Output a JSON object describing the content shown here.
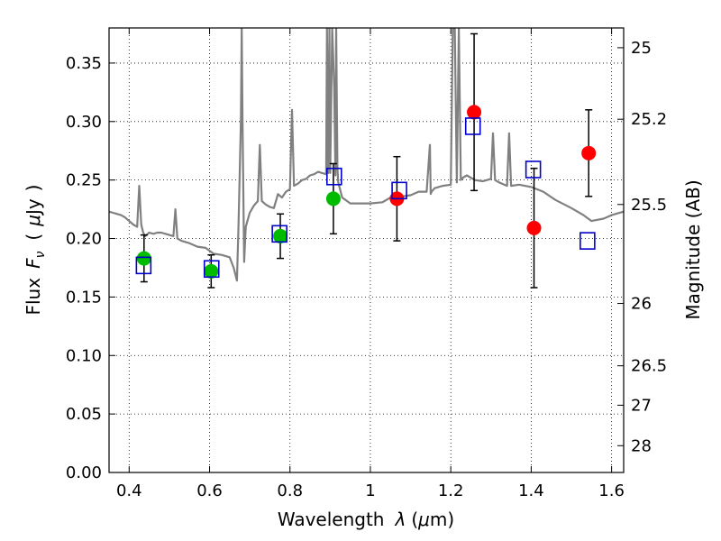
{
  "chart_data": {
    "type": "scatter",
    "xlabel_parts": {
      "a": "Wavelength",
      "b": "λ",
      "c": "(",
      "d": "μ",
      "e": "m)"
    },
    "ylabel_parts": {
      "a": "Flux",
      "b": "F",
      "c": "ν",
      "d": "(",
      "e": "μ",
      "f": "Jy",
      "g": ")"
    },
    "ylabel_right": "Magnitude (AB)",
    "xlim": [
      0.35,
      1.63
    ],
    "ylim": [
      0.0,
      0.38
    ],
    "x_ticks": [
      0.4,
      0.6,
      0.8,
      1.0,
      1.2,
      1.4,
      1.6
    ],
    "x_tick_labels": [
      "0.4",
      "0.6",
      "0.8",
      "1",
      "1.2",
      "1.4",
      "1.6"
    ],
    "y_ticks": [
      0.0,
      0.05,
      0.1,
      0.15,
      0.2,
      0.25,
      0.3,
      0.35
    ],
    "y_tick_labels": [
      "0.00",
      "0.05",
      "0.10",
      "0.15",
      "0.20",
      "0.25",
      "0.30",
      "0.35"
    ],
    "right_ticks": [
      {
        "label": "25",
        "flux": 0.3631
      },
      {
        "label": "25.2",
        "flux": 0.302
      },
      {
        "label": "25.5",
        "flux": 0.2291
      },
      {
        "label": "26",
        "flux": 0.1445
      },
      {
        "label": "26.5",
        "flux": 0.0912
      },
      {
        "label": "27",
        "flux": 0.0575
      },
      {
        "label": "28",
        "flux": 0.0229
      }
    ],
    "grid": true,
    "colors": {
      "model": "#808080",
      "green": "#00bb00",
      "red": "#ff0000",
      "blue": "#0000cc",
      "error": "#000000"
    },
    "model_spectrum": {
      "x": [
        0.35,
        0.36,
        0.37,
        0.38,
        0.39,
        0.4,
        0.41,
        0.42,
        0.425,
        0.43,
        0.435,
        0.44,
        0.45,
        0.46,
        0.47,
        0.48,
        0.49,
        0.5,
        0.51,
        0.515,
        0.52,
        0.53,
        0.55,
        0.57,
        0.59,
        0.61,
        0.63,
        0.65,
        0.66,
        0.668,
        0.672,
        0.678,
        0.68,
        0.682,
        0.686,
        0.69,
        0.7,
        0.71,
        0.72,
        0.725,
        0.73,
        0.74,
        0.75,
        0.76,
        0.77,
        0.78,
        0.79,
        0.8,
        0.805,
        0.81,
        0.82,
        0.83,
        0.84,
        0.85,
        0.86,
        0.87,
        0.88,
        0.89,
        0.892,
        0.895,
        0.898,
        0.9,
        0.905,
        0.91,
        0.913,
        0.915,
        0.918,
        0.92,
        0.93,
        0.95,
        0.97,
        1.0,
        1.03,
        1.05,
        1.08,
        1.1,
        1.12,
        1.14,
        1.148,
        1.15,
        1.152,
        1.16,
        1.18,
        1.2,
        1.205,
        1.21,
        1.215,
        1.22,
        1.225,
        1.23,
        1.24,
        1.26,
        1.28,
        1.29,
        1.3,
        1.305,
        1.31,
        1.32,
        1.34,
        1.345,
        1.35,
        1.37,
        1.4,
        1.43,
        1.46,
        1.5,
        1.53,
        1.55,
        1.58,
        1.6,
        1.63
      ],
      "y": [
        0.223,
        0.222,
        0.221,
        0.22,
        0.218,
        0.215,
        0.212,
        0.21,
        0.245,
        0.212,
        0.205,
        0.202,
        0.205,
        0.204,
        0.205,
        0.205,
        0.204,
        0.203,
        0.202,
        0.225,
        0.2,
        0.198,
        0.196,
        0.193,
        0.192,
        0.187,
        0.186,
        0.184,
        0.175,
        0.164,
        0.21,
        0.3,
        0.38,
        0.3,
        0.18,
        0.21,
        0.222,
        0.228,
        0.232,
        0.28,
        0.232,
        0.229,
        0.227,
        0.226,
        0.238,
        0.235,
        0.24,
        0.242,
        0.31,
        0.245,
        0.247,
        0.25,
        0.251,
        0.254,
        0.255,
        0.257,
        0.256,
        0.255,
        0.38,
        0.256,
        0.38,
        0.256,
        0.38,
        0.33,
        0.254,
        0.38,
        0.26,
        0.248,
        0.235,
        0.23,
        0.23,
        0.23,
        0.231,
        0.235,
        0.236,
        0.237,
        0.24,
        0.24,
        0.28,
        0.238,
        0.24,
        0.243,
        0.245,
        0.246,
        0.38,
        0.38,
        0.248,
        0.38,
        0.25,
        0.252,
        0.254,
        0.25,
        0.249,
        0.25,
        0.251,
        0.29,
        0.25,
        0.248,
        0.245,
        0.29,
        0.245,
        0.246,
        0.244,
        0.24,
        0.233,
        0.226,
        0.22,
        0.215,
        0.217,
        0.22,
        0.223
      ]
    },
    "series": [
      {
        "marker": "circle",
        "color": "green",
        "x": [
          0.437,
          0.604,
          0.776,
          0.908
        ],
        "y": [
          0.183,
          0.172,
          0.202,
          0.234
        ],
        "err": [
          0.02,
          0.014,
          0.019,
          0.03
        ]
      },
      {
        "marker": "circle",
        "color": "red",
        "x": [
          1.066,
          1.258,
          1.407,
          1.543
        ],
        "y": [
          0.234,
          0.308,
          0.209,
          0.273
        ],
        "err": [
          0.036,
          0.067,
          0.051,
          0.037
        ]
      },
      {
        "marker": "square",
        "color": "blue",
        "x": [
          0.436,
          0.605,
          0.774,
          0.91,
          1.072,
          1.255,
          1.405,
          1.54
        ],
        "y": [
          0.177,
          0.174,
          0.204,
          0.253,
          0.241,
          0.296,
          0.259,
          0.198
        ]
      }
    ]
  }
}
